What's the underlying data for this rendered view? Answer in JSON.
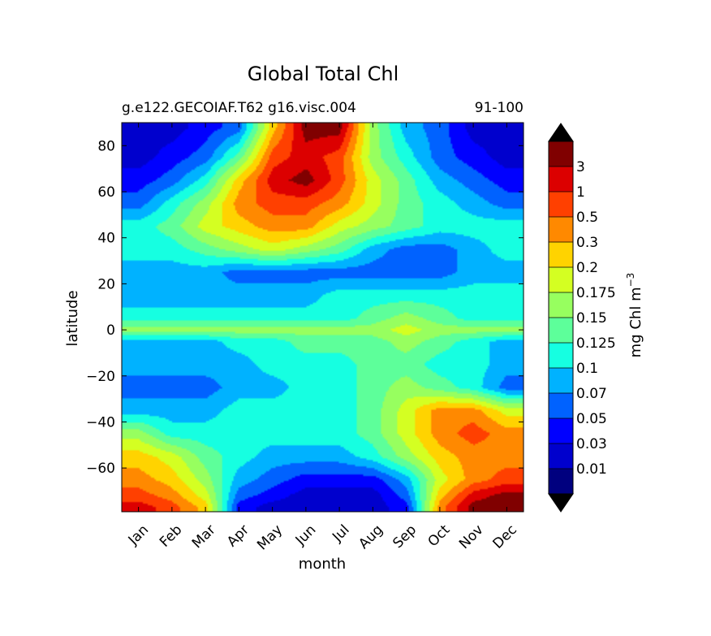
{
  "chart_data": {
    "type": "heatmap",
    "title": "Global Total Chl",
    "subtitle_left": "g.e122.GECOIAF.T62 g16.visc.004",
    "subtitle_right": "91-100",
    "xlabel": "month",
    "ylabel": "latitude",
    "x_tick_labels": [
      "Jan",
      "Feb",
      "Mar",
      "Apr",
      "May",
      "Jun",
      "Jul",
      "Aug",
      "Sep",
      "Oct",
      "Nov",
      "Dec"
    ],
    "y_ticks": [
      80,
      60,
      40,
      20,
      0,
      -20,
      -40,
      -60
    ],
    "y_tick_labels": [
      "80",
      "60",
      "40",
      "20",
      "0",
      "−20",
      "−40",
      "−60"
    ],
    "ylim": [
      -79,
      90
    ],
    "colorbar": {
      "label": "mg Chl m",
      "label_superscript": "−3",
      "extend": "both",
      "levels": [
        "0.01",
        "0.03",
        "0.05",
        "0.07",
        "0.1",
        "0.125",
        "0.15",
        "0.175",
        "0.2",
        "0.3",
        "0.5",
        "1",
        "3"
      ],
      "colors": [
        "#00007f",
        "#0000cd",
        "#0000ff",
        "#0062ff",
        "#00b2ff",
        "#16ffe1",
        "#5dff9a",
        "#97ff5f",
        "#d4ff22",
        "#ffd300",
        "#ff8900",
        "#ff4000",
        "#dc0000",
        "#800000"
      ]
    },
    "field": {
      "latitudes": [
        88,
        75,
        65,
        55,
        45,
        35,
        25,
        15,
        5,
        0,
        -5,
        -15,
        -25,
        -35,
        -45,
        -55,
        -65,
        -72,
        -77
      ],
      "values": [
        [
          1,
          1,
          2,
          3,
          9,
          13,
          13,
          7,
          4,
          3,
          1,
          1
        ],
        [
          1,
          2,
          3,
          6,
          11,
          12,
          11,
          7,
          5,
          3,
          2,
          1
        ],
        [
          2,
          3,
          5,
          9,
          12,
          13,
          11,
          8,
          6,
          4,
          3,
          2
        ],
        [
          3,
          5,
          7,
          10,
          11,
          11,
          10,
          8,
          6,
          5,
          4,
          3
        ],
        [
          5,
          6,
          8,
          9,
          10,
          10,
          8,
          7,
          6,
          5,
          5,
          5
        ],
        [
          5,
          5,
          6,
          7,
          8,
          7,
          6,
          4,
          3,
          3,
          4,
          5
        ],
        [
          4,
          4,
          4,
          3,
          3,
          3,
          3,
          3,
          3,
          3,
          4,
          4
        ],
        [
          4,
          4,
          4,
          4,
          4,
          4,
          5,
          5,
          5,
          5,
          5,
          5
        ],
        [
          5,
          5,
          5,
          5,
          5,
          5,
          5,
          6,
          7,
          6,
          5,
          5
        ],
        [
          7,
          7,
          7,
          7,
          7,
          7,
          7,
          7,
          8,
          7,
          7,
          7
        ],
        [
          4,
          4,
          4,
          5,
          5,
          6,
          6,
          6,
          7,
          6,
          5,
          4
        ],
        [
          4,
          4,
          4,
          4,
          5,
          5,
          5,
          6,
          6,
          5,
          5,
          4
        ],
        [
          3,
          3,
          3,
          4,
          4,
          5,
          5,
          6,
          7,
          6,
          5,
          3
        ],
        [
          4,
          4,
          4,
          5,
          5,
          5,
          5,
          6,
          8,
          10,
          10,
          8
        ],
        [
          7,
          5,
          5,
          5,
          5,
          5,
          5,
          6,
          8,
          10,
          11,
          10
        ],
        [
          9,
          8,
          6,
          5,
          4,
          4,
          4,
          5,
          7,
          9,
          10,
          10
        ],
        [
          10,
          9,
          7,
          4,
          3,
          2,
          2,
          2,
          4,
          8,
          10,
          11
        ],
        [
          11,
          10,
          8,
          3,
          2,
          1,
          1,
          1,
          3,
          9,
          12,
          13
        ],
        [
          12,
          11,
          9,
          2,
          1,
          1,
          1,
          1,
          2,
          10,
          13,
          13
        ]
      ]
    }
  }
}
